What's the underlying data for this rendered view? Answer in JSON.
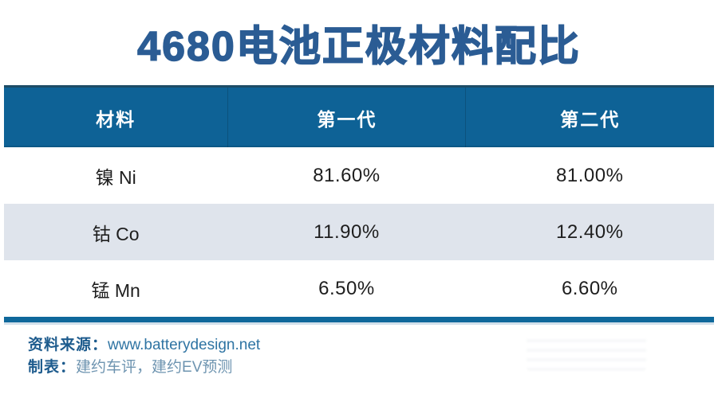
{
  "title": "4680电池正极材料配比",
  "table": {
    "headers": [
      "材料",
      "第一代",
      "第二代"
    ],
    "rows": [
      [
        "镍 Ni",
        "81.60%",
        "81.00%"
      ],
      [
        "钴 Co",
        "11.90%",
        "12.40%"
      ],
      [
        "锰 Mn",
        "6.50%",
        "6.60%"
      ]
    ]
  },
  "footer": {
    "source_label": "资料来源：",
    "source_value": "www.batterydesign.net",
    "author_label": "制表：",
    "author_value": "建约车评，建约EV预测"
  },
  "colors": {
    "title_text": "#2b5c94",
    "header_bg": "#0e6296",
    "header_top_edge": "#1d4c66",
    "header_text": "#ffffff",
    "row_bg": "#ffffff",
    "row_alt_bg": "#dfe4ec",
    "body_text": "#1e1e1e",
    "accent_bar": "#0f689b",
    "footer_label": "#1d5b8d",
    "footer_source_value": "#2f74a3",
    "footer_author_value": "#6e94b0"
  },
  "chart_data": {
    "type": "table",
    "title": "4680电池正极材料配比",
    "columns": [
      "材料",
      "第一代",
      "第二代"
    ],
    "categories": [
      "镍 Ni",
      "钴 Co",
      "锰 Mn"
    ],
    "series": [
      {
        "name": "第一代",
        "values": [
          81.6,
          11.9,
          6.5
        ],
        "unit": "%"
      },
      {
        "name": "第二代",
        "values": [
          81.0,
          12.4,
          6.6
        ],
        "unit": "%"
      }
    ],
    "rows": [
      [
        "镍 Ni",
        "81.60%",
        "81.00%"
      ],
      [
        "钴 Co",
        "11.90%",
        "12.40%"
      ],
      [
        "锰 Mn",
        "6.50%",
        "6.60%"
      ]
    ],
    "source": "www.batterydesign.net",
    "credit": "建约车评，建约EV预测"
  }
}
